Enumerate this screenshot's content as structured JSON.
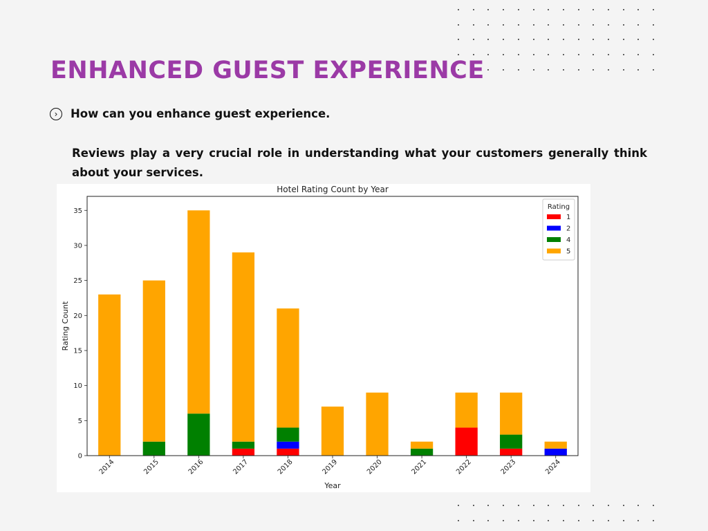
{
  "slide": {
    "title": "ENHANCED GUEST EXPERIENCE",
    "bullet_icon": "chevron-right-circle-icon",
    "bullet_text": "How can you enhance guest experience.",
    "paragraph": "Reviews play a very crucial role in understanding what your customers generally think about your services."
  },
  "colors": {
    "title": "#9b3aa6",
    "background": "#f4f4f4"
  },
  "chart_data": {
    "type": "bar",
    "stacked": true,
    "title": "Hotel Rating Count by Year",
    "xlabel": "Year",
    "ylabel": "Rating Count",
    "categories": [
      "2014",
      "2015",
      "2016",
      "2017",
      "2018",
      "2019",
      "2020",
      "2021",
      "2022",
      "2023",
      "2024"
    ],
    "ylim": [
      0,
      37
    ],
    "yticks": [
      0,
      5,
      10,
      15,
      20,
      25,
      30,
      35
    ],
    "legend_title": "Rating",
    "legend_position": "top-right",
    "grid": false,
    "series": [
      {
        "name": "1",
        "color": "#ff0000",
        "values": [
          0,
          0,
          0,
          1,
          1,
          0,
          0,
          0,
          4,
          1,
          0
        ]
      },
      {
        "name": "2",
        "color": "#0000ff",
        "values": [
          0,
          0,
          0,
          0,
          1,
          0,
          0,
          0,
          0,
          0,
          1
        ]
      },
      {
        "name": "4",
        "color": "#008000",
        "values": [
          0,
          2,
          6,
          1,
          2,
          0,
          0,
          1,
          0,
          2,
          0
        ]
      },
      {
        "name": "5",
        "color": "#ffa500",
        "values": [
          23,
          23,
          29,
          27,
          17,
          7,
          9,
          1,
          5,
          6,
          1
        ]
      }
    ]
  }
}
